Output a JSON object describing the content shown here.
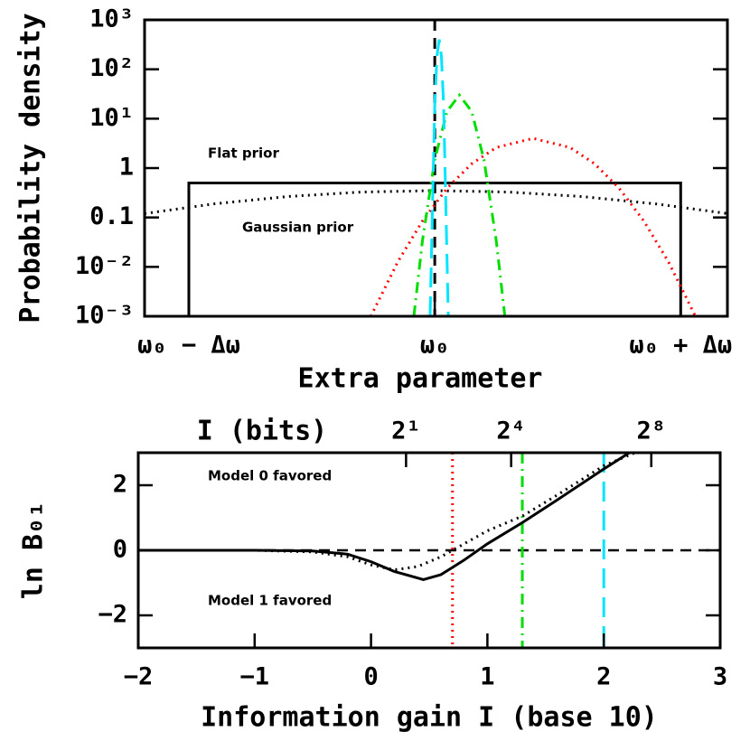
{
  "chart_data": [
    {
      "type": "line",
      "ylog": true,
      "xlabel": "Extra parameter",
      "ylabel": "Probability density",
      "xlim": [
        -1.18,
        1.19
      ],
      "ylim": [
        0.001,
        1000
      ],
      "xticks": [
        {
          "value": -1,
          "label": "ω₀ − Δω"
        },
        {
          "value": 0,
          "label": "ω₀"
        },
        {
          "value": 1,
          "label": "ω₀ + Δω"
        }
      ],
      "yticks": [
        {
          "value": 0.001,
          "label": "10⁻³"
        },
        {
          "value": 0.01,
          "label": "10⁻²"
        },
        0.1,
        1,
        {
          "value": 10,
          "label": "10¹"
        },
        {
          "value": 100,
          "label": "10²"
        },
        {
          "value": 1000,
          "label": "10³"
        }
      ],
      "annotations": [
        "Flat prior",
        "Gaussian prior"
      ],
      "vlines": [
        {
          "x": 0,
          "color": "#000000",
          "dash": "dashed"
        }
      ],
      "series": [
        {
          "color": "#000000",
          "dash": "solid",
          "x": [
            -1,
            -1,
            1,
            1
          ],
          "values": [
            0.001,
            0.5,
            0.5,
            0.001
          ]
        },
        {
          "color": "#000000",
          "dash": "dotted",
          "x": [
            -1.18,
            -0.9,
            -0.6,
            -0.3,
            0,
            0.3,
            0.6,
            0.9,
            1.19
          ],
          "values": [
            0.12,
            0.188,
            0.265,
            0.327,
            0.35,
            0.327,
            0.265,
            0.188,
            0.12
          ]
        },
        {
          "color": "#ff0000",
          "dash": "dotted",
          "x": [
            -0.26,
            -0.15,
            -0.05,
            0.05,
            0.15,
            0.25,
            0.4,
            0.55,
            0.65,
            0.75,
            0.85,
            0.95,
            1.06
          ],
          "values": [
            0.001,
            0.0127,
            0.085,
            0.39,
            1.22,
            2.61,
            4,
            2.61,
            1.22,
            0.39,
            0.085,
            0.0127,
            0.001
          ]
        },
        {
          "color": "#00dd00",
          "dash": "dashdot",
          "x": [
            -0.085,
            -0.05,
            0,
            0.05,
            0.1,
            0.15,
            0.2,
            0.25,
            0.285
          ],
          "values": [
            0.001,
            0.034,
            1.48,
            14.1,
            30,
            14.1,
            1.48,
            0.034,
            0.001
          ]
        },
        {
          "color": "#00e5ff",
          "dash": "longdash",
          "x": [
            -0.019,
            0,
            0.009,
            0.018,
            0.027,
            0.036,
            0.055
          ],
          "values": [
            0.001,
            18.8,
            186,
            400,
            186,
            18.8,
            0.001
          ]
        }
      ]
    },
    {
      "type": "line",
      "ylog": false,
      "xlabel": "Information gain I (base 10)",
      "ylabel": "ln B₀₁",
      "x2label": "I (bits)",
      "xlim": [
        -2,
        3
      ],
      "ylim": [
        -3,
        3
      ],
      "xticks": [
        {
          "value": -2,
          "label": "−2"
        },
        {
          "value": -1,
          "label": "−1"
        },
        0,
        1,
        2,
        3
      ],
      "x2ticks": [
        {
          "value": 0.301,
          "label": "2¹"
        },
        {
          "value": 1.204,
          "label": "2⁴"
        },
        {
          "value": 2.408,
          "label": "2⁸"
        }
      ],
      "yticks": [
        {
          "value": -2,
          "label": "−2"
        },
        0,
        2
      ],
      "annotations": [
        "Model 0 favored",
        "Model 1 favored"
      ],
      "hlines": [
        {
          "y": 0,
          "color": "#000000",
          "dash": "dashed"
        }
      ],
      "vlines": [
        {
          "x": 0.7,
          "color": "#ff0000",
          "dash": "dotted"
        },
        {
          "x": 1.3,
          "color": "#00dd00",
          "dash": "dashdot"
        },
        {
          "x": 2,
          "color": "#00e5ff",
          "dash": "longdash"
        }
      ],
      "series": [
        {
          "color": "#000000",
          "dash": "solid",
          "x": [
            -2,
            -1,
            -0.5,
            -0.2,
            0,
            0.2,
            0.45,
            0.6,
            0.8,
            1,
            1.3,
            1.6,
            2,
            2.22
          ],
          "values": [
            0,
            0,
            -0.02,
            -0.12,
            -0.35,
            -0.65,
            -0.9,
            -0.75,
            -0.3,
            0.2,
            0.85,
            1.55,
            2.5,
            3
          ]
        },
        {
          "color": "#000000",
          "dash": "dotted",
          "x": [
            -2,
            -1,
            -0.5,
            -0.2,
            0,
            0.2,
            0.4,
            0.6,
            0.8,
            1,
            1.3,
            1.6,
            2,
            2.27
          ],
          "values": [
            0,
            0,
            -0.05,
            -0.2,
            -0.45,
            -0.6,
            -0.5,
            -0.2,
            0.2,
            0.6,
            1.05,
            1.7,
            2.6,
            3
          ]
        }
      ]
    }
  ]
}
